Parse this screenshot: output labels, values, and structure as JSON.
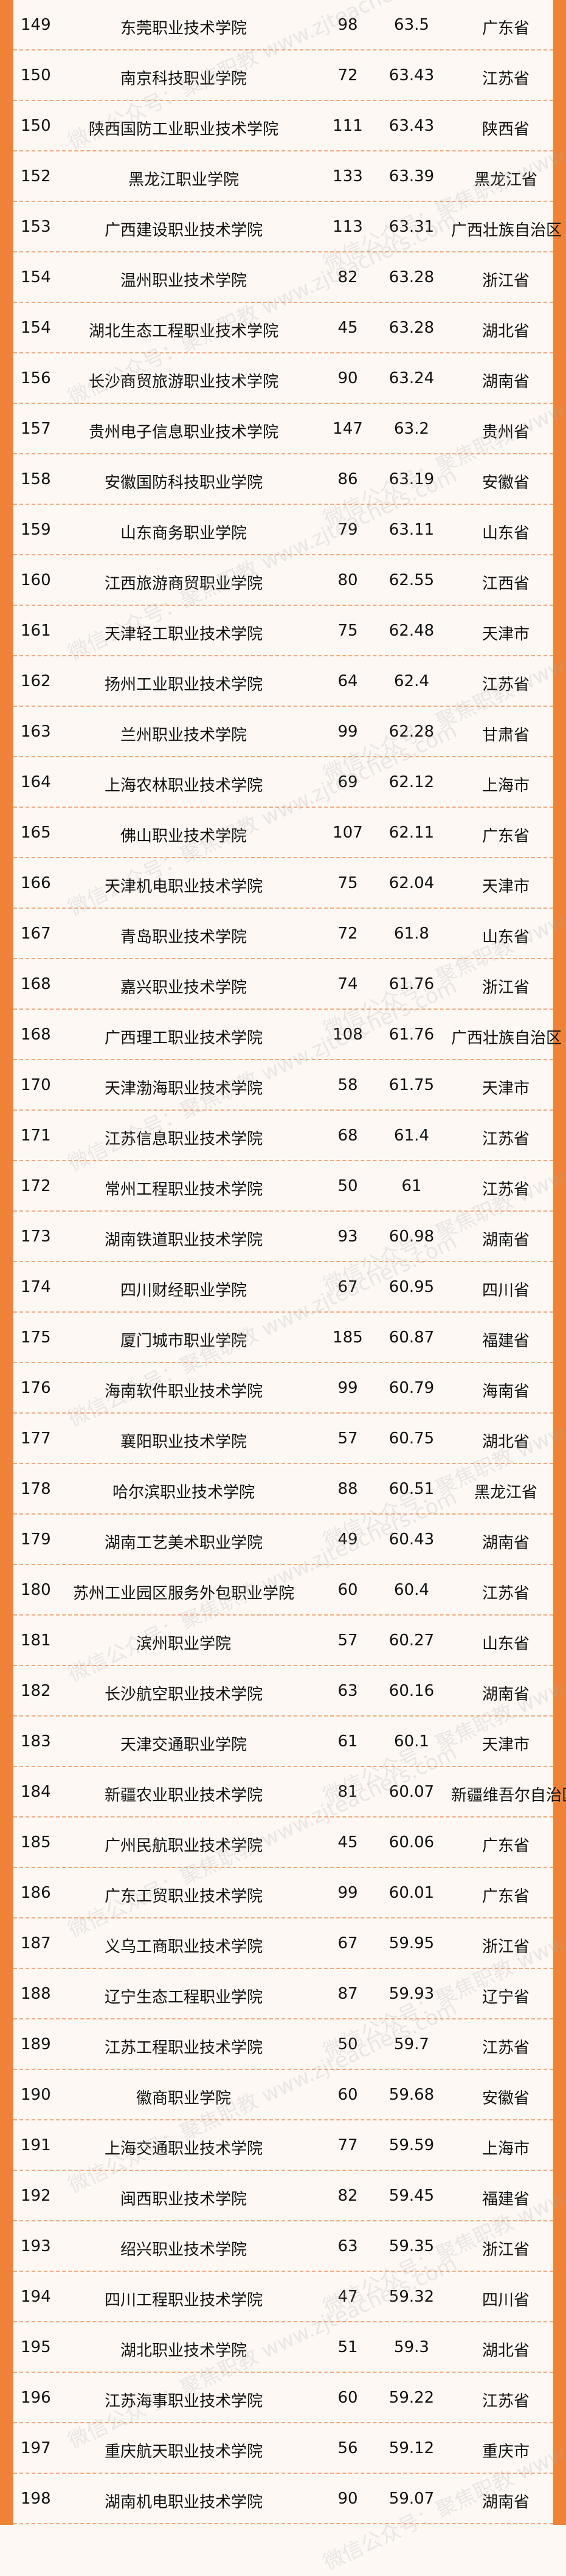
{
  "accent_color": "#ef8236",
  "divider_color": "#f3a97c",
  "watermark": "微信公众号：聚焦职教 www.zjteachers.com",
  "rows": [
    {
      "rank": "149",
      "name": "东莞职业技术学院",
      "num": "98",
      "score": "63.5",
      "province": "广东省"
    },
    {
      "rank": "150",
      "name": "南京科技职业学院",
      "num": "72",
      "score": "63.43",
      "province": "江苏省"
    },
    {
      "rank": "150",
      "name": "陕西国防工业职业技术学院",
      "num": "111",
      "score": "63.43",
      "province": "陕西省"
    },
    {
      "rank": "152",
      "name": "黑龙江职业学院",
      "num": "133",
      "score": "63.39",
      "province": "黑龙江省"
    },
    {
      "rank": "153",
      "name": "广西建设职业技术学院",
      "num": "113",
      "score": "63.31",
      "province": "广西壮族自治区"
    },
    {
      "rank": "154",
      "name": "温州职业技术学院",
      "num": "82",
      "score": "63.28",
      "province": "浙江省"
    },
    {
      "rank": "154",
      "name": "湖北生态工程职业技术学院",
      "num": "45",
      "score": "63.28",
      "province": "湖北省"
    },
    {
      "rank": "156",
      "name": "长沙商贸旅游职业技术学院",
      "num": "90",
      "score": "63.24",
      "province": "湖南省"
    },
    {
      "rank": "157",
      "name": "贵州电子信息职业技术学院",
      "num": "147",
      "score": "63.2",
      "province": "贵州省"
    },
    {
      "rank": "158",
      "name": "安徽国防科技职业学院",
      "num": "86",
      "score": "63.19",
      "province": "安徽省"
    },
    {
      "rank": "159",
      "name": "山东商务职业学院",
      "num": "79",
      "score": "63.11",
      "province": "山东省"
    },
    {
      "rank": "160",
      "name": "江西旅游商贸职业学院",
      "num": "80",
      "score": "62.55",
      "province": "江西省"
    },
    {
      "rank": "161",
      "name": "天津轻工职业技术学院",
      "num": "75",
      "score": "62.48",
      "province": "天津市"
    },
    {
      "rank": "162",
      "name": "扬州工业职业技术学院",
      "num": "64",
      "score": "62.4",
      "province": "江苏省"
    },
    {
      "rank": "163",
      "name": "兰州职业技术学院",
      "num": "99",
      "score": "62.28",
      "province": "甘肃省"
    },
    {
      "rank": "164",
      "name": "上海农林职业技术学院",
      "num": "69",
      "score": "62.12",
      "province": "上海市"
    },
    {
      "rank": "165",
      "name": "佛山职业技术学院",
      "num": "107",
      "score": "62.11",
      "province": "广东省"
    },
    {
      "rank": "166",
      "name": "天津机电职业技术学院",
      "num": "75",
      "score": "62.04",
      "province": "天津市"
    },
    {
      "rank": "167",
      "name": "青岛职业技术学院",
      "num": "72",
      "score": "61.8",
      "province": "山东省"
    },
    {
      "rank": "168",
      "name": "嘉兴职业技术学院",
      "num": "74",
      "score": "61.76",
      "province": "浙江省"
    },
    {
      "rank": "168",
      "name": "广西理工职业技术学院",
      "num": "108",
      "score": "61.76",
      "province": "广西壮族自治区"
    },
    {
      "rank": "170",
      "name": "天津渤海职业技术学院",
      "num": "58",
      "score": "61.75",
      "province": "天津市"
    },
    {
      "rank": "171",
      "name": "江苏信息职业技术学院",
      "num": "68",
      "score": "61.4",
      "province": "江苏省"
    },
    {
      "rank": "172",
      "name": "常州工程职业技术学院",
      "num": "50",
      "score": "61",
      "province": "江苏省"
    },
    {
      "rank": "173",
      "name": "湖南铁道职业技术学院",
      "num": "93",
      "score": "60.98",
      "province": "湖南省"
    },
    {
      "rank": "174",
      "name": "四川财经职业学院",
      "num": "67",
      "score": "60.95",
      "province": "四川省"
    },
    {
      "rank": "175",
      "name": "厦门城市职业学院",
      "num": "185",
      "score": "60.87",
      "province": "福建省"
    },
    {
      "rank": "176",
      "name": "海南软件职业技术学院",
      "num": "99",
      "score": "60.79",
      "province": "海南省"
    },
    {
      "rank": "177",
      "name": "襄阳职业技术学院",
      "num": "57",
      "score": "60.75",
      "province": "湖北省"
    },
    {
      "rank": "178",
      "name": "哈尔滨职业技术学院",
      "num": "88",
      "score": "60.51",
      "province": "黑龙江省"
    },
    {
      "rank": "179",
      "name": "湖南工艺美术职业学院",
      "num": "49",
      "score": "60.43",
      "province": "湖南省"
    },
    {
      "rank": "180",
      "name": "苏州工业园区服务外包职业学院",
      "num": "60",
      "score": "60.4",
      "province": "江苏省"
    },
    {
      "rank": "181",
      "name": "滨州职业学院",
      "num": "57",
      "score": "60.27",
      "province": "山东省"
    },
    {
      "rank": "182",
      "name": "长沙航空职业技术学院",
      "num": "63",
      "score": "60.16",
      "province": "湖南省"
    },
    {
      "rank": "183",
      "name": "天津交通职业学院",
      "num": "61",
      "score": "60.1",
      "province": "天津市"
    },
    {
      "rank": "184",
      "name": "新疆农业职业技术学院",
      "num": "81",
      "score": "60.07",
      "province": "新疆维吾尔自治区"
    },
    {
      "rank": "185",
      "name": "广州民航职业技术学院",
      "num": "45",
      "score": "60.06",
      "province": "广东省"
    },
    {
      "rank": "186",
      "name": "广东工贸职业技术学院",
      "num": "99",
      "score": "60.01",
      "province": "广东省"
    },
    {
      "rank": "187",
      "name": "义乌工商职业技术学院",
      "num": "67",
      "score": "59.95",
      "province": "浙江省"
    },
    {
      "rank": "188",
      "name": "辽宁生态工程职业学院",
      "num": "87",
      "score": "59.93",
      "province": "辽宁省"
    },
    {
      "rank": "189",
      "name": "江苏工程职业技术学院",
      "num": "50",
      "score": "59.7",
      "province": "江苏省"
    },
    {
      "rank": "190",
      "name": "徽商职业学院",
      "num": "60",
      "score": "59.68",
      "province": "安徽省"
    },
    {
      "rank": "191",
      "name": "上海交通职业技术学院",
      "num": "77",
      "score": "59.59",
      "province": "上海市"
    },
    {
      "rank": "192",
      "name": "闽西职业技术学院",
      "num": "82",
      "score": "59.45",
      "province": "福建省"
    },
    {
      "rank": "193",
      "name": "绍兴职业技术学院",
      "num": "63",
      "score": "59.35",
      "province": "浙江省"
    },
    {
      "rank": "194",
      "name": "四川工程职业技术学院",
      "num": "47",
      "score": "59.32",
      "province": "四川省"
    },
    {
      "rank": "195",
      "name": "湖北职业技术学院",
      "num": "51",
      "score": "59.3",
      "province": "湖北省"
    },
    {
      "rank": "196",
      "name": "江苏海事职业技术学院",
      "num": "60",
      "score": "59.22",
      "province": "江苏省"
    },
    {
      "rank": "197",
      "name": "重庆航天职业技术学院",
      "num": "56",
      "score": "59.12",
      "province": "重庆市"
    },
    {
      "rank": "198",
      "name": "湖南机电职业技术学院",
      "num": "90",
      "score": "59.07",
      "province": "湖南省"
    }
  ]
}
